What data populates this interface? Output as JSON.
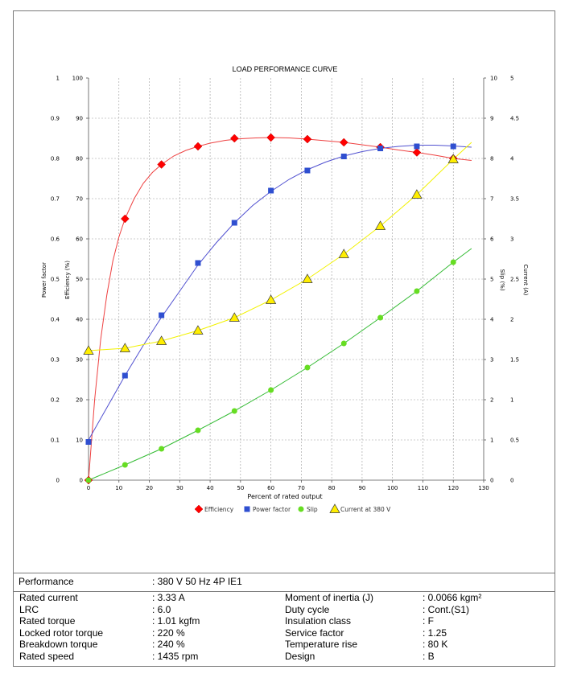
{
  "chart_data": {
    "type": "line",
    "title": "LOAD PERFORMANCE CURVE",
    "xlabel": "Percent of rated output",
    "xlim": [
      0,
      130
    ],
    "xticks": [
      0,
      10,
      20,
      30,
      40,
      50,
      60,
      70,
      80,
      90,
      100,
      110,
      120,
      130
    ],
    "grid": true,
    "legend_placement": "bottom-center",
    "axes": {
      "power_factor": {
        "label": "Power factor",
        "side": "left-outer",
        "range": [
          0,
          1
        ],
        "ticks": [
          "0",
          "0.1",
          "0.2",
          "0.3",
          "0.4",
          "0.5",
          "0.6",
          "0.7",
          "0.8",
          "0.9",
          "1"
        ]
      },
      "efficiency": {
        "label": "Efficiency (%)",
        "side": "left-inner",
        "range": [
          0,
          100
        ],
        "ticks": [
          "0",
          "10",
          "20",
          "30",
          "40",
          "50",
          "60",
          "70",
          "80",
          "90",
          "100"
        ]
      },
      "slip": {
        "label": "Slip (%)",
        "side": "right-inner",
        "range": [
          0,
          10
        ],
        "ticks": [
          "0",
          "1",
          "2",
          "3",
          "4",
          "5",
          "6",
          "7",
          "8",
          "9",
          "10"
        ]
      },
      "current": {
        "label": "Current (A)",
        "side": "right-outer",
        "range": [
          0,
          5
        ],
        "ticks": [
          "0",
          "0.5",
          "1",
          "1.5",
          "2",
          "2.5",
          "3",
          "3.5",
          "4",
          "4.5",
          "5"
        ]
      }
    },
    "series": [
      {
        "name": "Efficiency",
        "axis": "efficiency",
        "marker": "diamond",
        "color": "#ff0000",
        "line_color": "#ee4040",
        "x": [
          0,
          12,
          24,
          36,
          48,
          60,
          72,
          84,
          96,
          108,
          120
        ],
        "values": [
          0,
          65,
          78.5,
          83,
          85,
          85.2,
          84.8,
          84,
          82.8,
          81.5,
          80
        ],
        "curve_x": [
          0,
          2,
          4,
          6,
          8,
          10,
          12,
          15,
          18,
          21,
          24,
          28,
          32,
          36,
          40,
          45,
          50,
          55,
          60,
          66,
          72,
          78,
          84,
          90,
          96,
          102,
          108,
          114,
          120,
          126
        ],
        "curve_y": [
          0,
          20,
          35,
          46,
          54.5,
          60.5,
          65,
          70,
          73.8,
          76.5,
          78.5,
          80.6,
          82,
          83,
          83.8,
          84.5,
          84.9,
          85.1,
          85.2,
          85.1,
          84.8,
          84.4,
          84,
          83.4,
          82.8,
          82.1,
          81.5,
          80.8,
          80,
          79.5
        ]
      },
      {
        "name": "Power factor",
        "axis": "power_factor",
        "marker": "square",
        "color": "#2f4fd0",
        "line_color": "#5050d0",
        "x": [
          0,
          12,
          24,
          36,
          48,
          60,
          72,
          84,
          96,
          108,
          120
        ],
        "values": [
          0.095,
          0.26,
          0.41,
          0.54,
          0.64,
          0.72,
          0.77,
          0.805,
          0.825,
          0.83,
          0.83
        ],
        "curve_x": [
          0,
          6,
          12,
          18,
          24,
          30,
          36,
          42,
          48,
          54,
          60,
          66,
          72,
          78,
          84,
          90,
          96,
          102,
          108,
          114,
          120,
          126
        ],
        "curve_y": [
          0.1,
          0.18,
          0.26,
          0.335,
          0.405,
          0.47,
          0.535,
          0.59,
          0.64,
          0.683,
          0.718,
          0.748,
          0.772,
          0.791,
          0.806,
          0.817,
          0.825,
          0.83,
          0.833,
          0.833,
          0.831,
          0.828
        ]
      },
      {
        "name": "Slip",
        "axis": "slip",
        "marker": "circle",
        "color": "#66dd22",
        "line_color": "#33bb33",
        "x": [
          0,
          12,
          24,
          36,
          48,
          60,
          72,
          84,
          96,
          108,
          120
        ],
        "values": [
          0,
          0.38,
          0.78,
          1.24,
          1.72,
          2.24,
          2.8,
          3.4,
          4.04,
          4.7,
          5.42
        ],
        "curve_x": [
          0,
          12,
          24,
          36,
          48,
          60,
          72,
          84,
          96,
          108,
          120,
          126
        ],
        "curve_y": [
          0,
          0.38,
          0.78,
          1.24,
          1.72,
          2.24,
          2.8,
          3.4,
          4.04,
          4.7,
          5.42,
          5.76
        ]
      },
      {
        "name": "Current at 380 V",
        "axis": "current",
        "marker": "triangle",
        "color": "#ffee00",
        "line_color": "#f2f200",
        "x": [
          0,
          12,
          24,
          36,
          48,
          60,
          72,
          84,
          96,
          108,
          120
        ],
        "values": [
          1.61,
          1.64,
          1.73,
          1.86,
          2.02,
          2.24,
          2.5,
          2.81,
          3.16,
          3.55,
          3.99
        ],
        "curve_x": [
          0,
          12,
          24,
          36,
          48,
          60,
          72,
          84,
          96,
          108,
          120,
          126
        ],
        "curve_y": [
          1.61,
          1.64,
          1.73,
          1.86,
          2.02,
          2.24,
          2.5,
          2.81,
          3.16,
          3.55,
          3.99,
          4.2
        ]
      }
    ]
  },
  "table": {
    "performance": {
      "label": "Performance",
      "value": ": 380 V 50 Hz 4P IE1"
    },
    "left": [
      {
        "label": "Rated current",
        "value": ": 3.33 A"
      },
      {
        "label": "LRC",
        "value": ": 6.0"
      },
      {
        "label": "Rated torque",
        "value": ": 1.01 kgfm"
      },
      {
        "label": "Locked rotor torque",
        "value": ": 220 %"
      },
      {
        "label": "Breakdown torque",
        "value": ": 240 %"
      },
      {
        "label": "Rated speed",
        "value": ": 1435 rpm"
      }
    ],
    "right": [
      {
        "label": "Moment of inertia (J)",
        "value": ": 0.0066 kgm²"
      },
      {
        "label": "Duty cycle",
        "value": ": Cont.(S1)"
      },
      {
        "label": "Insulation class",
        "value": ": F"
      },
      {
        "label": "Service factor",
        "value": ": 1.25"
      },
      {
        "label": "Temperature rise",
        "value": ": 80 K"
      },
      {
        "label": "Design",
        "value": ": B"
      }
    ]
  }
}
